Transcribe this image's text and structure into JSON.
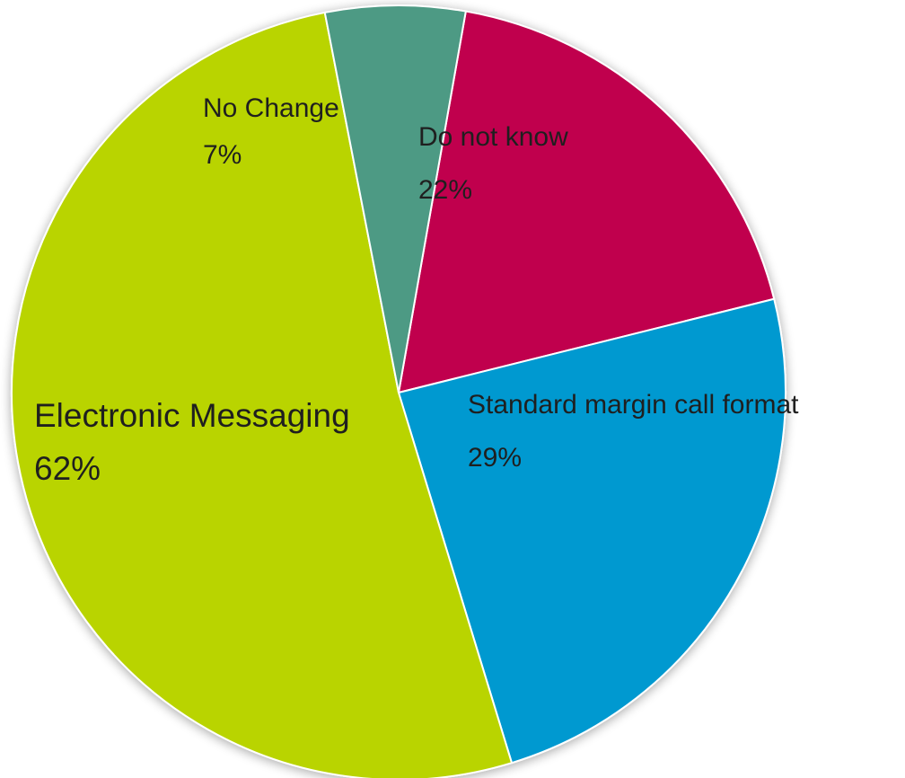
{
  "chart_data": {
    "type": "pie",
    "title": "",
    "slices": [
      {
        "label": "Do not know",
        "value_label": "22%",
        "value": 22,
        "color": "#C0004E"
      },
      {
        "label": "Standard margin call format",
        "value_label": "29%",
        "value": 29,
        "color": "#0099D0"
      },
      {
        "label": "Electronic Messaging",
        "value_label": "62%",
        "value": 62,
        "color": "#B9D400"
      },
      {
        "label": "No Change",
        "value_label": "7%",
        "value": 7,
        "color": "#4E9A84"
      }
    ],
    "legend": "none",
    "edge_color": "#ffffff"
  }
}
